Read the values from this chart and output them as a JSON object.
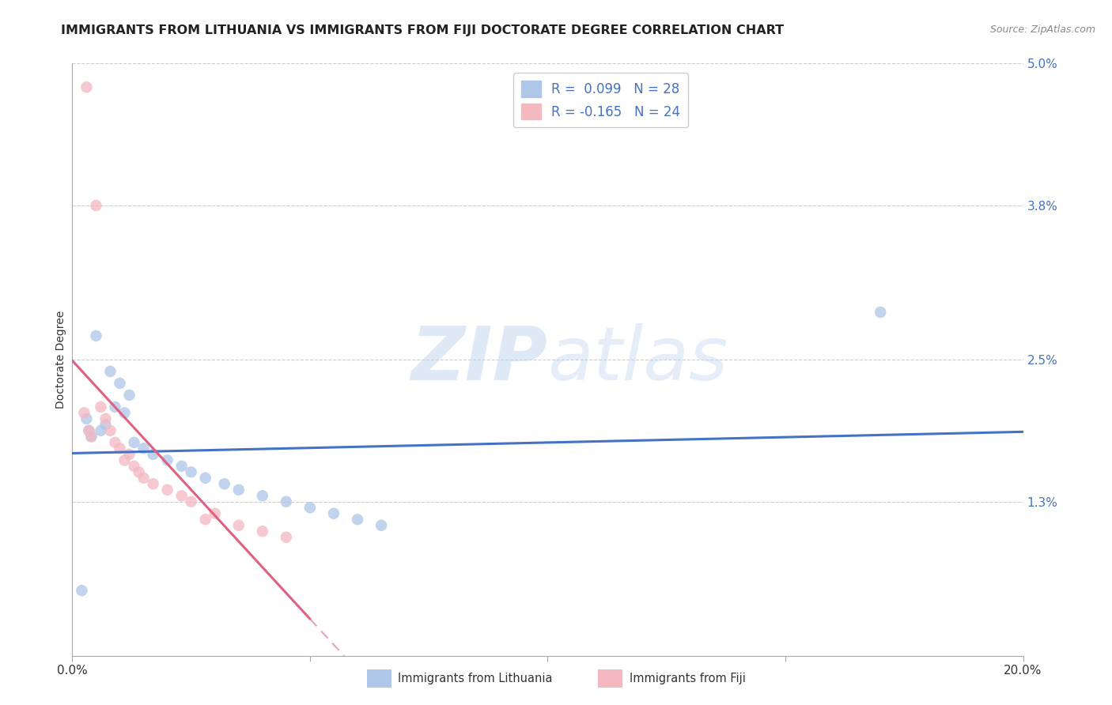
{
  "title": "IMMIGRANTS FROM LITHUANIA VS IMMIGRANTS FROM FIJI DOCTORATE DEGREE CORRELATION CHART",
  "source": "Source: ZipAtlas.com",
  "ylabel": "Doctorate Degree",
  "xmin": 0.0,
  "xmax": 20.0,
  "ymin": 0.0,
  "ymax": 5.0,
  "yticks": [
    1.3,
    2.5,
    3.8,
    5.0
  ],
  "ytick_labels": [
    "1.3%",
    "2.5%",
    "3.8%",
    "5.0%"
  ],
  "legend1_label": "R =  0.099   N = 28",
  "legend2_label": "R = -0.165   N = 24",
  "legend_color1": "#aec6e8",
  "legend_color2": "#f4b8c1",
  "scatter_color1": "#aec6e8",
  "scatter_color2": "#f4b8c1",
  "line_color1": "#4472c4",
  "line_color2": "#e06080",
  "watermark_zip": "ZIP",
  "watermark_atlas": "atlas",
  "bottom_label1": "Immigrants from Lithuania",
  "bottom_label2": "Immigrants from Fiji",
  "lithuania_x": [
    0.5,
    0.8,
    1.0,
    1.2,
    0.3,
    0.4,
    0.6,
    0.7,
    0.9,
    1.1,
    1.3,
    1.5,
    1.7,
    2.0,
    2.3,
    2.5,
    2.8,
    3.2,
    3.5,
    4.0,
    4.5,
    5.0,
    5.5,
    6.0,
    6.5,
    17.0,
    0.2,
    0.35
  ],
  "lithuania_y": [
    2.7,
    2.4,
    2.3,
    2.2,
    2.0,
    1.85,
    1.9,
    1.95,
    2.1,
    2.05,
    1.8,
    1.75,
    1.7,
    1.65,
    1.6,
    1.55,
    1.5,
    1.45,
    1.4,
    1.35,
    1.3,
    1.25,
    1.2,
    1.15,
    1.1,
    2.9,
    0.55,
    1.9
  ],
  "fiji_x": [
    0.3,
    0.5,
    0.6,
    0.7,
    0.8,
    0.9,
    1.0,
    1.2,
    1.3,
    1.5,
    1.7,
    2.0,
    2.3,
    2.5,
    3.0,
    3.5,
    4.0,
    4.5,
    0.4,
    1.1,
    1.4,
    2.8,
    0.25,
    0.35
  ],
  "fiji_y": [
    4.8,
    3.8,
    2.1,
    2.0,
    1.9,
    1.8,
    1.75,
    1.7,
    1.6,
    1.5,
    1.45,
    1.4,
    1.35,
    1.3,
    1.2,
    1.1,
    1.05,
    1.0,
    1.85,
    1.65,
    1.55,
    1.15,
    2.05,
    1.9
  ],
  "scatter_size": 110,
  "background_color": "#ffffff",
  "grid_color": "#cccccc",
  "title_fontsize": 11.5,
  "axis_label_fontsize": 10,
  "tick_fontsize": 11,
  "legend_fontsize": 12
}
